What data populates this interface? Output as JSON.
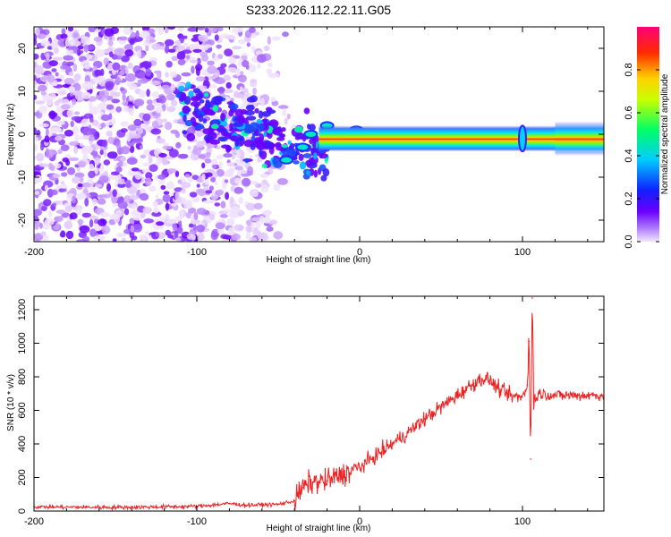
{
  "title": "S233.2026.112.22.11.G05",
  "colors": {
    "snr_line": "#ee2222",
    "axes": "#000000"
  },
  "chart_data": [
    {
      "type": "heatmap",
      "xlabel": "Height of straight line (km)",
      "ylabel": "Frequency (Hz)",
      "xlim": [
        -200,
        150
      ],
      "ylim": [
        -25,
        25
      ],
      "xticks": [
        -200,
        -100,
        0,
        100
      ],
      "yticks": [
        -20,
        -10,
        0,
        10,
        20
      ],
      "colorbar": {
        "label": "Normalized spectral amplitude",
        "range": [
          0,
          1
        ],
        "ticks": [
          "0.0",
          "0.2",
          "0.4",
          "0.6",
          "0.8"
        ],
        "tick_values": [
          0,
          0.2,
          0.4,
          0.6,
          0.8
        ],
        "colormap": "rainbow (violet-blue-cyan-green-yellow-red-magenta)"
      },
      "features": {
        "noise_region_x": [
          -200,
          -50
        ],
        "scintillation_region_x": [
          -110,
          -20
        ],
        "carrier_line_x": [
          -25,
          150
        ],
        "carrier_freq_hz": -1,
        "spike_x": 100
      }
    },
    {
      "type": "line",
      "xlabel": "Height of straight line (km)",
      "ylabel": "SNR (10 * v/v)",
      "xlim": [
        -200,
        150
      ],
      "ylim": [
        0,
        1280
      ],
      "xticks": [
        -200,
        -100,
        0,
        100
      ],
      "yticks": [
        0,
        200,
        400,
        600,
        800,
        1000,
        1200
      ],
      "series": [
        {
          "name": "SNR",
          "x": [
            -200,
            -150,
            -100,
            -80,
            -70,
            -50,
            -40,
            -35,
            -30,
            -20,
            -10,
            0,
            10,
            20,
            30,
            40,
            50,
            60,
            70,
            75,
            80,
            85,
            90,
            95,
            100,
            103,
            104,
            105,
            106,
            107,
            110,
            120,
            130,
            140,
            150
          ],
          "y": [
            25,
            22,
            28,
            45,
            35,
            40,
            60,
            140,
            170,
            180,
            220,
            260,
            330,
            400,
            470,
            550,
            620,
            690,
            760,
            790,
            780,
            730,
            700,
            680,
            680,
            750,
            1010,
            310,
            1270,
            660,
            700,
            690,
            690,
            690,
            690
          ]
        }
      ]
    }
  ]
}
